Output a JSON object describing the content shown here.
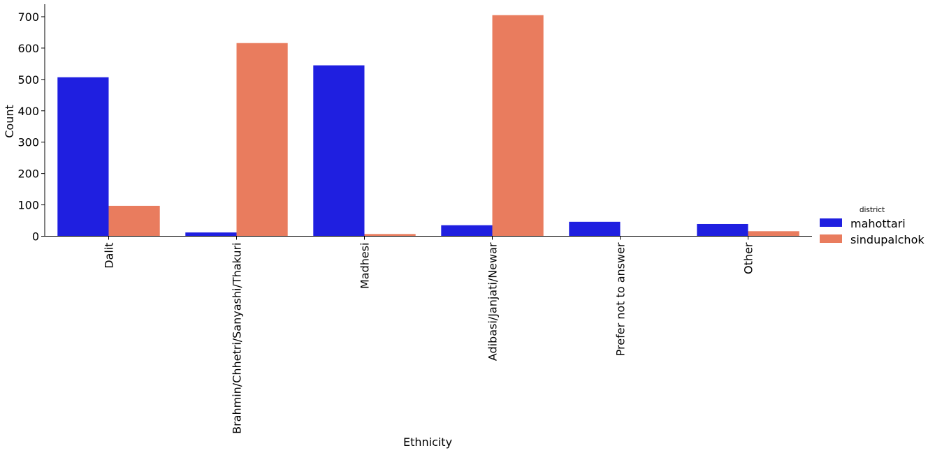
{
  "chart_data": {
    "type": "bar",
    "title": "",
    "xlabel": "Ethnicity",
    "ylabel": "Count",
    "ylim": [
      0,
      740
    ],
    "yticks": [
      0,
      100,
      200,
      300,
      400,
      500,
      600,
      700
    ],
    "categories": [
      "Dalit",
      "Brahmin/Chhetri/Sanyashi/Thakuri",
      "Madhesi",
      "Adibasi/Janjati/Newar",
      "Prefer not to answer",
      "Other"
    ],
    "series": [
      {
        "name": "mahottari",
        "color": "#1f1fe0",
        "values": [
          507,
          12,
          545,
          35,
          46,
          39
        ]
      },
      {
        "name": "sindupalchok",
        "color": "#e97c5e",
        "values": [
          97,
          616,
          7,
          705,
          0,
          16
        ]
      }
    ],
    "grid": false,
    "legend": {
      "title": "district",
      "placement": "right"
    }
  }
}
